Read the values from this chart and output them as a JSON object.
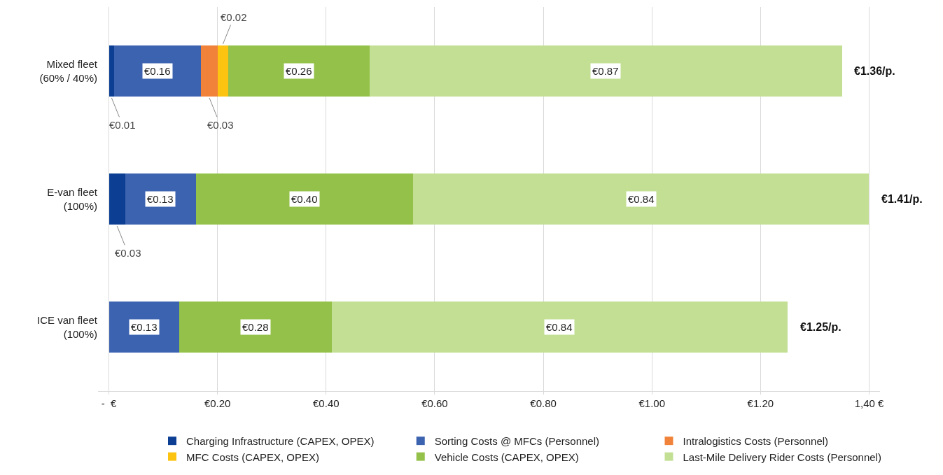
{
  "chart_data": {
    "type": "bar",
    "orientation": "horizontal",
    "stacked": true,
    "categories": [
      "Mixed fleet (60% / 40%)",
      "E-van fleet (100%)",
      "ICE van fleet (100%)"
    ],
    "series": [
      {
        "name": "Charging Infrastructure (CAPEX, OPEX)",
        "color": "#0c3f94",
        "values": [
          0.01,
          0.03,
          null
        ],
        "value_labels": [
          "€0.01",
          "€0.03",
          null
        ]
      },
      {
        "name": "Sorting Costs @ MFCs (Personnel)",
        "color": "#3c63b0",
        "values": [
          0.16,
          0.13,
          0.13
        ],
        "value_labels": [
          "€0.16",
          "€0.13",
          "€0.13"
        ]
      },
      {
        "name": "Intralogistics Costs (Personnel)",
        "color": "#f0823a",
        "values": [
          0.03,
          null,
          null
        ],
        "value_labels": [
          "€0.03",
          null,
          null
        ]
      },
      {
        "name": "MFC Costs (CAPEX, OPEX)",
        "color": "#fcc410",
        "values": [
          0.02,
          null,
          null
        ],
        "value_labels": [
          "€0.02",
          null,
          null
        ]
      },
      {
        "name": "Vehicle Costs (CAPEX, OPEX)",
        "color": "#94c149",
        "values": [
          0.26,
          0.4,
          0.28
        ],
        "value_labels": [
          "€0.26",
          "€0.40",
          "€0.28"
        ]
      },
      {
        "name": "Last-Mile Delivery Rider Costs (Personnel)",
        "color": "#c3df94",
        "values": [
          0.87,
          0.84,
          0.84
        ],
        "value_labels": [
          "€0.87",
          "€0.84",
          "€0.84"
        ]
      }
    ],
    "totals": [
      "€1.36/p.",
      "€1.41/p.",
      "€1.25/p."
    ],
    "xlim": [
      -0.02,
      1.42
    ],
    "xticks": [
      {
        "value": 0,
        "label": "-  €"
      },
      {
        "value": 0.2,
        "label": "€0.20"
      },
      {
        "value": 0.4,
        "label": "€0.40"
      },
      {
        "value": 0.6,
        "label": "€0.60"
      },
      {
        "value": 0.8,
        "label": "€0.80"
      },
      {
        "value": 1.0,
        "label": "€1.00"
      },
      {
        "value": 1.2,
        "label": "€1.20"
      },
      {
        "value": 1.4,
        "label": "1,40 €"
      }
    ],
    "grid": "x",
    "legend": "bottom"
  }
}
